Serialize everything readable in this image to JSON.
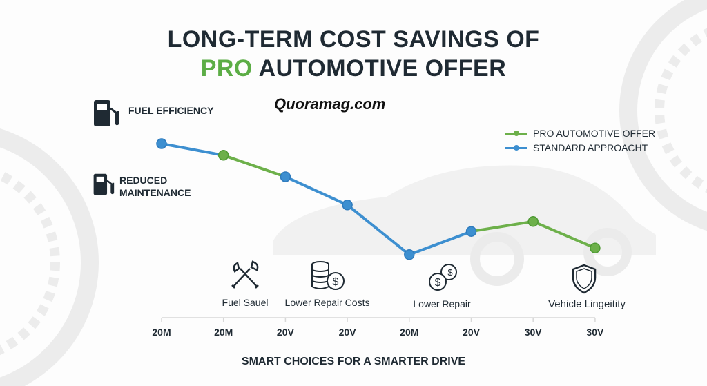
{
  "title_line1": "LONG-TERM COST SAVINGS OF",
  "title_line2_highlight": "PRO",
  "title_line2_rest": "AUTOMOTIVE OFFER",
  "watermark": "Quoramag.com",
  "features": [
    {
      "icon": "fuel-pump-icon",
      "label": "FUEL EFFICIENCY"
    },
    {
      "icon": "fuel-pump-icon",
      "label_line1": "REDUCED",
      "label_line2": "MAINTENANCE"
    }
  ],
  "icon_labels": [
    {
      "icon": "wrench-icon",
      "label": "Fuel Sauel"
    },
    {
      "icon": "coin-stack-icon",
      "label": "Lower Repair Costs"
    },
    {
      "icon": "coins-icon",
      "label": "Lower Repair"
    },
    {
      "icon": "shield-icon",
      "label": "Vehicle Lingeitity"
    }
  ],
  "footer": "SMART CHOICES FOR A SMARTER DRIVE",
  "colors": {
    "pro": "#6db04a",
    "standard": "#3d8fd0",
    "text": "#1f2a33"
  },
  "chart_data": {
    "type": "line",
    "title": "LONG-TERM COST SAVINGS OF PRO AUTOMOTIVE OFFER",
    "xlabel": "",
    "ylabel": "",
    "categories": [
      "20M",
      "20M",
      "20V",
      "20V",
      "20M",
      "20V",
      "30V",
      "30V"
    ],
    "values": [
      80,
      73,
      60,
      43,
      13,
      27,
      33,
      17
    ],
    "point_series": [
      "standard",
      "pro",
      "standard",
      "standard",
      "standard",
      "standard",
      "pro",
      "pro"
    ],
    "segment_series": [
      "standard",
      "pro",
      "standard",
      "standard",
      "standard",
      "pro",
      "pro"
    ],
    "legend": [
      {
        "key": "pro",
        "label": "PRO AUTOMOTIVE OFFER"
      },
      {
        "key": "standard",
        "label": "STANDARD APPROACHT"
      }
    ],
    "legend_position": "top-right",
    "ylim": [
      0,
      100
    ],
    "grid": false
  }
}
